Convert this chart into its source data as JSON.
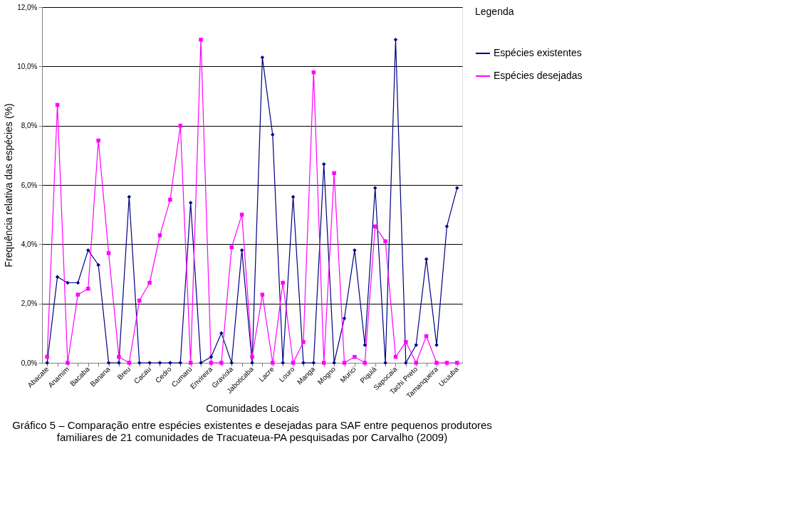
{
  "chart_data": {
    "type": "line",
    "xlabel": "Comunidades Locais",
    "ylabel": "Frequência relativa das espécies (%)",
    "legend_title": "Legenda",
    "legend": "right",
    "grid": "y",
    "categories": [
      "Abacate",
      null,
      "Anamim",
      null,
      "Bacaba",
      null,
      "Banana",
      null,
      "Breu",
      null,
      "Cacau",
      null,
      "Cedro",
      null,
      "Cumaru",
      null,
      "Envireira",
      null,
      "Graviola",
      null,
      "Jaboticaba",
      null,
      "Lacre",
      null,
      "Louro",
      null,
      "Manga",
      null,
      "Mogno",
      null,
      "Murici",
      null,
      "Piquiá",
      null,
      "Sapocaia",
      null,
      "Tachi Preto",
      null,
      "Tamanqueira",
      null,
      "Ucuuba"
    ],
    "ylim": [
      0,
      12
    ],
    "yticks": [
      {
        "value": 0,
        "label": "0,0%"
      },
      {
        "value": 2,
        "label": "2,0%"
      },
      {
        "value": 4,
        "label": "4,0%"
      },
      {
        "value": 6,
        "label": "6,0%"
      },
      {
        "value": 8,
        "label": "8,0%"
      },
      {
        "value": 10,
        "label": "10,0%"
      },
      {
        "value": 12,
        "label": "12,0%"
      }
    ],
    "series": [
      {
        "name": "Espécies existentes",
        "color": "#000080",
        "marker": "diamond",
        "values": [
          0,
          2.9,
          2.7,
          2.7,
          3.8,
          3.3,
          0,
          0,
          5.6,
          0,
          0,
          0,
          0,
          0,
          5.4,
          0,
          0.2,
          1.0,
          0,
          3.8,
          0,
          10.3,
          7.7,
          0,
          5.6,
          0,
          0,
          6.7,
          0,
          1.5,
          3.8,
          0.6,
          5.9,
          0,
          10.9,
          0,
          0.6,
          3.5,
          0.6,
          4.6,
          5.9
        ]
      },
      {
        "name": "Espécies desejadas",
        "color": "#ff00ff",
        "marker": "square",
        "values": [
          0.2,
          8.7,
          0,
          2.3,
          2.5,
          7.5,
          3.7,
          0.2,
          0,
          2.1,
          2.7,
          4.3,
          5.5,
          8.0,
          0,
          10.9,
          0,
          0,
          3.9,
          5.0,
          0.2,
          2.3,
          0,
          2.7,
          0,
          0.7,
          9.8,
          0,
          6.4,
          0,
          0.2,
          0,
          4.6,
          4.1,
          0.2,
          0.7,
          0,
          0.9,
          0,
          0,
          0
        ]
      }
    ],
    "annotations": [
      "Gráfico 5 – Comparação entre espécies existentes e desejadas para SAF entre pequenos produtores familiares de 21 comunidades de Tracuateua-PA pesquisadas por Carvalho (2009)"
    ]
  }
}
